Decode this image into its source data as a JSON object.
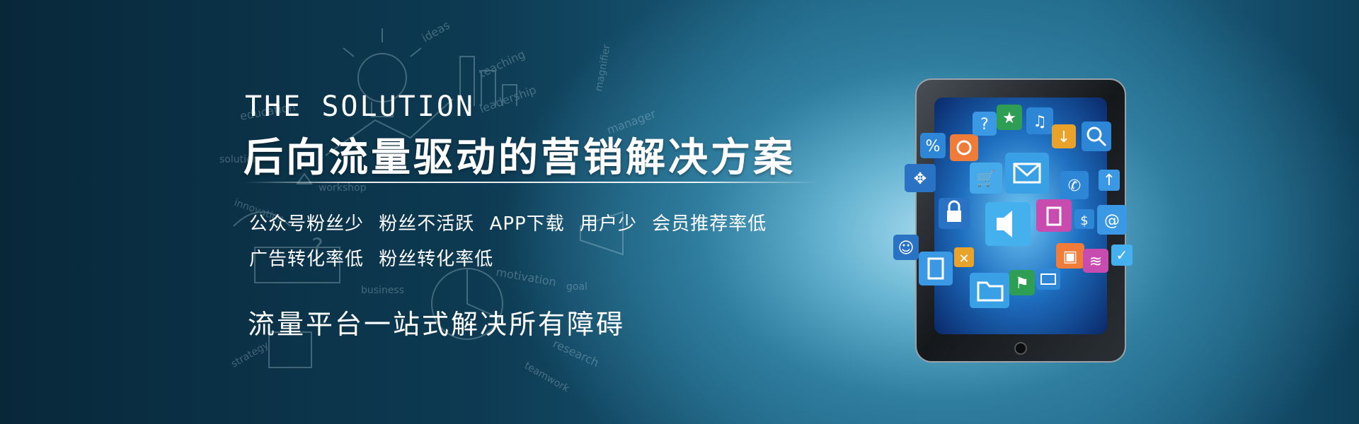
{
  "banner": {
    "headline_en": "THE SOLUTION",
    "headline_cn": "后向流量驱动的营销解决方案",
    "pain_points_line1": [
      "公众号粉丝少",
      "粉丝不活跃",
      "APP下载",
      "用户少",
      "会员推荐率低"
    ],
    "pain_points_line2": [
      "广告转化率低",
      "粉丝转化率低"
    ],
    "tagline": "流量平台一站式解决所有障碍"
  },
  "doodle_words": [
    "ideas",
    "teaching",
    "education",
    "leadership",
    "magnifier",
    "manager",
    "solution",
    "workshop",
    "innovation",
    "business",
    "motivation",
    "strategy",
    "research",
    "teamwork",
    "goal"
  ],
  "colors": {
    "bg_dark": "#0d3a52",
    "bg_glow": "#a9dcee",
    "text": "#ffffff"
  },
  "icons": [
    "percent-icon",
    "camera-icon",
    "question-icon",
    "star-icon",
    "music-icon",
    "download-icon",
    "search-icon",
    "gamepad-icon",
    "cart-icon",
    "mail-icon",
    "phone-icon",
    "upload-icon",
    "lock-icon",
    "speaker-icon",
    "trash-icon",
    "dollar-icon",
    "at-icon",
    "user-icon",
    "calculator-icon",
    "close-icon",
    "folder-icon",
    "flag-icon",
    "card-icon",
    "save-icon",
    "rss-icon",
    "check-icon"
  ]
}
